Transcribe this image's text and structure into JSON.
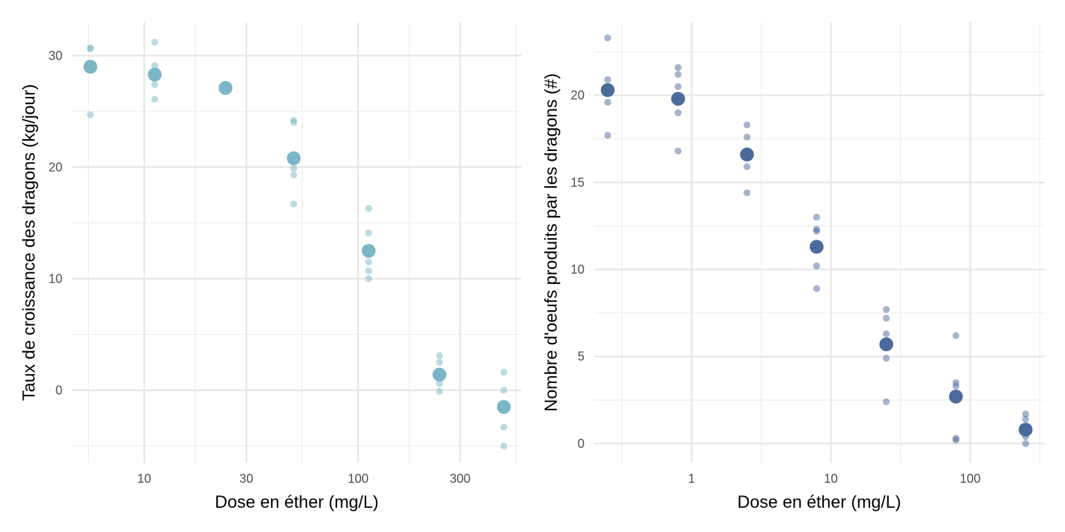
{
  "chart_data": [
    {
      "type": "scatter",
      "xlabel": "Dose en éther (mg/L)",
      "ylabel": "Taux de croissance des dragons (kg/jour)",
      "x_scale": "log10",
      "xlim": [
        4.6,
        580
      ],
      "ylim": [
        -6.5,
        33.0
      ],
      "x_major_ticks": [
        10,
        30,
        100,
        300
      ],
      "x_minor_ticks": [
        5.48,
        17.32,
        54.77,
        173.2,
        547.7
      ],
      "y_major_ticks": [
        0,
        10,
        20,
        30
      ],
      "y_minor_ticks": [
        -5,
        5,
        15,
        25
      ],
      "grid": true,
      "point_color": "#7bb6c8",
      "series": [
        {
          "role": "observations",
          "points": [
            {
              "x": 5.6,
              "y": 30.7
            },
            {
              "x": 5.6,
              "y": 30.6
            },
            {
              "x": 5.6,
              "y": 29.3
            },
            {
              "x": 5.6,
              "y": 24.7
            },
            {
              "x": 11.2,
              "y": 31.2
            },
            {
              "x": 11.2,
              "y": 29.1
            },
            {
              "x": 11.2,
              "y": 28.1
            },
            {
              "x": 11.2,
              "y": 27.4
            },
            {
              "x": 11.2,
              "y": 26.1
            },
            {
              "x": 50,
              "y": 24.2
            },
            {
              "x": 50,
              "y": 24.0
            },
            {
              "x": 50,
              "y": 19.9
            },
            {
              "x": 50,
              "y": 19.3
            },
            {
              "x": 50,
              "y": 16.7
            },
            {
              "x": 112,
              "y": 16.3
            },
            {
              "x": 112,
              "y": 14.1
            },
            {
              "x": 112,
              "y": 11.5
            },
            {
              "x": 112,
              "y": 10.7
            },
            {
              "x": 112,
              "y": 10.0
            },
            {
              "x": 240,
              "y": 3.1
            },
            {
              "x": 240,
              "y": 2.5
            },
            {
              "x": 240,
              "y": 0.6
            },
            {
              "x": 240,
              "y": -0.1
            },
            {
              "x": 480,
              "y": 1.6
            },
            {
              "x": 480,
              "y": 0.0
            },
            {
              "x": 480,
              "y": -3.3
            },
            {
              "x": 480,
              "y": -5.0
            }
          ]
        },
        {
          "role": "means",
          "points": [
            {
              "x": 5.6,
              "y": 29.0
            },
            {
              "x": 11.2,
              "y": 28.3
            },
            {
              "x": 24,
              "y": 27.1
            },
            {
              "x": 50,
              "y": 20.8
            },
            {
              "x": 112,
              "y": 12.5
            },
            {
              "x": 240,
              "y": 1.4
            },
            {
              "x": 480,
              "y": -1.5
            }
          ]
        }
      ]
    },
    {
      "type": "scatter",
      "xlabel": "Dose en éther (mg/L)",
      "ylabel": "Nombre d'oeufs produits par les dragons (#)",
      "x_scale": "log10",
      "xlim": [
        0.2,
        340
      ],
      "ylim": [
        -1.1,
        24.2
      ],
      "x_major_ticks": [
        1,
        10,
        100
      ],
      "x_major_tick_labels": [
        "1",
        "10",
        "100"
      ],
      "x_minor_ticks": [
        0.3162,
        3.162,
        31.62,
        316.2
      ],
      "y_major_ticks": [
        0,
        5,
        10,
        15,
        20
      ],
      "y_minor_ticks": [
        2.5,
        7.5,
        12.5,
        17.5,
        22.5
      ],
      "grid": true,
      "point_color": "#4a6a9c",
      "series": [
        {
          "role": "observations",
          "points": [
            {
              "x": 0.25,
              "y": 23.3
            },
            {
              "x": 0.25,
              "y": 20.9
            },
            {
              "x": 0.25,
              "y": 19.6
            },
            {
              "x": 0.25,
              "y": 17.7
            },
            {
              "x": 0.8,
              "y": 21.6
            },
            {
              "x": 0.8,
              "y": 21.2
            },
            {
              "x": 0.8,
              "y": 20.5
            },
            {
              "x": 0.8,
              "y": 19.0
            },
            {
              "x": 0.8,
              "y": 16.8
            },
            {
              "x": 2.5,
              "y": 18.3
            },
            {
              "x": 2.5,
              "y": 17.6
            },
            {
              "x": 2.5,
              "y": 15.9
            },
            {
              "x": 2.5,
              "y": 14.4
            },
            {
              "x": 7.9,
              "y": 13.0
            },
            {
              "x": 7.9,
              "y": 12.3
            },
            {
              "x": 7.9,
              "y": 12.2
            },
            {
              "x": 7.9,
              "y": 10.2
            },
            {
              "x": 7.9,
              "y": 8.9
            },
            {
              "x": 25,
              "y": 7.7
            },
            {
              "x": 25,
              "y": 7.2
            },
            {
              "x": 25,
              "y": 6.3
            },
            {
              "x": 25,
              "y": 4.9
            },
            {
              "x": 25,
              "y": 2.4
            },
            {
              "x": 79,
              "y": 6.2
            },
            {
              "x": 79,
              "y": 3.5
            },
            {
              "x": 79,
              "y": 3.3
            },
            {
              "x": 79,
              "y": 0.3
            },
            {
              "x": 79,
              "y": 0.2
            },
            {
              "x": 250,
              "y": 1.7
            },
            {
              "x": 250,
              "y": 1.4
            },
            {
              "x": 250,
              "y": 0.7
            },
            {
              "x": 250,
              "y": 0.4
            },
            {
              "x": 250,
              "y": 0.0
            }
          ]
        },
        {
          "role": "means",
          "points": [
            {
              "x": 0.25,
              "y": 20.3
            },
            {
              "x": 0.8,
              "y": 19.8
            },
            {
              "x": 2.5,
              "y": 16.6
            },
            {
              "x": 7.9,
              "y": 11.3
            },
            {
              "x": 25,
              "y": 5.7
            },
            {
              "x": 79,
              "y": 2.7
            },
            {
              "x": 250,
              "y": 0.8
            }
          ]
        }
      ]
    }
  ]
}
